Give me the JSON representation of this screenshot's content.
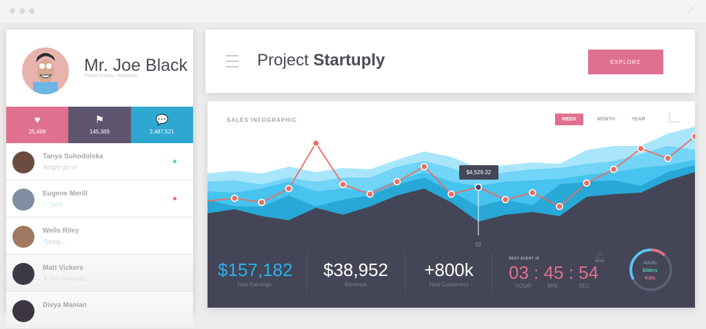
{
  "window": {
    "expand_icon": "expand-icon"
  },
  "profile": {
    "name": "Mr. Joe Black",
    "location": "Puerto Cortes, Honduras"
  },
  "stats": [
    {
      "icon": "heart-icon",
      "value": "25,498",
      "color": "#e0708f"
    },
    {
      "icon": "flag-icon",
      "value": "145,369",
      "color": "#5e566f"
    },
    {
      "icon": "chat-icon",
      "value": "2,487,521",
      "color": "#2ea7d1"
    }
  ],
  "contacts": [
    {
      "name": "Tanya Suhodolska",
      "message": "Alright got it!",
      "status_color": "#4fd6b8",
      "avatar_color": "#6b4a40"
    },
    {
      "name": "Eugene Merill",
      "message": "✓ Sent",
      "status_color": "#ef6b73",
      "avatar_color": "#7f8ea0"
    },
    {
      "name": "Wells Riley",
      "message": "Typing...",
      "status_color": "",
      "avatar_color": "#a07a60"
    },
    {
      "name": "Matt Vickers",
      "message": "✕ Not delivered",
      "status_color": "",
      "avatar_color": "#3d3a48"
    },
    {
      "name": "Divya Manian",
      "message": "",
      "status_color": "",
      "avatar_color": "#3a3540"
    }
  ],
  "header": {
    "title_light": "Project ",
    "title_bold": "Startuply",
    "explore_label": "EXPLORE",
    "accent": "#e0708f"
  },
  "chart_header": {
    "title": "SALES INFOGRAPHIC",
    "tabs": [
      "WEEK",
      "MONTH",
      "YEAR"
    ],
    "active_tab": "WEEK"
  },
  "chart_data": {
    "type": "area",
    "x": [
      0,
      1,
      2,
      3,
      4,
      5,
      6,
      7,
      8,
      9,
      10,
      11,
      12,
      13,
      14,
      15,
      16,
      17,
      18
    ],
    "x_tick_labels": [
      "10"
    ],
    "highlight": {
      "x": 10,
      "label": "$4,529.32"
    },
    "series": [
      {
        "values": [
          64,
          66,
          64,
          69,
          65,
          68,
          67,
          74,
          80,
          76,
          68,
          70,
          72,
          71,
          81,
          84,
          84,
          93,
          98
        ],
        "color": "#a9e6fb"
      },
      {
        "values": [
          58,
          59,
          56,
          61,
          58,
          61,
          61,
          69,
          73,
          68,
          61,
          65,
          67,
          68,
          71,
          73,
          78,
          84,
          81
        ],
        "color": "#72d4f6"
      },
      {
        "values": [
          51,
          50,
          53,
          58,
          51,
          53,
          51,
          59,
          65,
          58,
          55,
          58,
          59,
          60,
          63,
          65,
          68,
          70,
          74
        ],
        "color": "#46c3ef"
      },
      {
        "values": [
          45,
          40,
          40,
          48,
          40,
          45,
          48,
          56,
          61,
          51,
          40,
          45,
          41,
          56,
          58,
          59,
          55,
          65,
          70
        ],
        "color": "#27a8d6"
      },
      {
        "values": [
          35,
          38,
          33,
          30,
          39,
          34,
          40,
          48,
          53,
          43,
          29,
          34,
          36,
          33,
          47,
          49,
          50,
          59,
          65
        ],
        "color": "#444556"
      }
    ],
    "line": {
      "values": [
        44,
        46,
        43,
        53,
        86,
        56,
        49,
        58,
        69,
        49,
        54,
        45,
        50,
        40,
        57,
        67,
        82,
        75,
        91
      ],
      "color": "#ef6b5e"
    },
    "grid": false
  },
  "kpis": [
    {
      "value": "$157,182",
      "label": "Total Earnings",
      "color": "#2ab0ec"
    },
    {
      "value": "$38,952",
      "label": "Revenue",
      "color": "#ffffff"
    },
    {
      "value": "+800k",
      "label": "New Customers",
      "color": "#ffffff"
    }
  ],
  "timer": {
    "label": "NEXT EVENT IN",
    "display": "03 : 45 : 54",
    "units": [
      "HOUR",
      "MIN",
      "SEC"
    ]
  },
  "donut": {
    "legend": [
      {
        "label": "Adults",
        "color": "#7fa3b0"
      },
      {
        "label": "Elders",
        "color": "#4fd6b8"
      },
      {
        "label": "Kids",
        "color": "#e0708f"
      }
    ],
    "segments": [
      {
        "share": 0.12,
        "color": "#e0708f"
      },
      {
        "share": 0.3,
        "color": "#5d5f73"
      },
      {
        "share": 0.25,
        "color": "#5d5f73"
      },
      {
        "share": 0.33,
        "color": "#56c7ef"
      }
    ]
  }
}
